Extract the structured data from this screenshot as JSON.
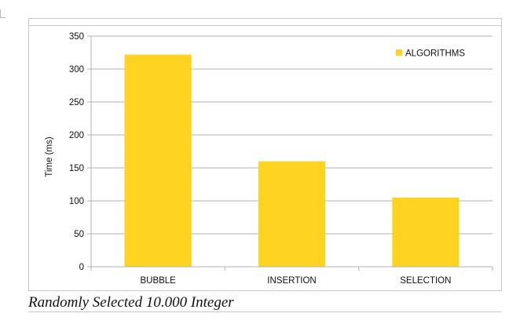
{
  "chart_data": {
    "type": "bar",
    "categories": [
      "BUBBLE",
      "INSERTION",
      "SELECTION"
    ],
    "series": [
      {
        "name": "ALGORITHMS",
        "values": [
          322,
          160,
          105
        ],
        "color": "#FFD320"
      }
    ],
    "xlabel": "",
    "ylabel": "Time (ms)",
    "ylim": [
      0,
      350
    ],
    "yticks": [
      0,
      50,
      100,
      150,
      200,
      250,
      300,
      350
    ],
    "grid": true,
    "legend_position": "top-right"
  },
  "caption": "Randomly Selected 10.000 Integer"
}
